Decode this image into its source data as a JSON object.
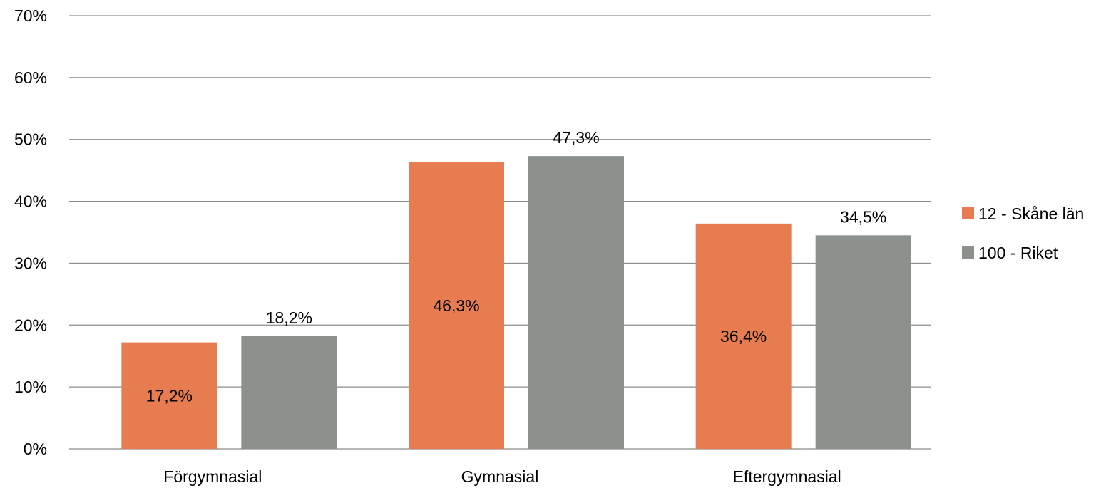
{
  "chart_data": {
    "type": "bar",
    "title": "",
    "xlabel": "",
    "ylabel": "",
    "categories": [
      "Förgymnasial",
      "Gymnasial",
      "Eftergymnasial"
    ],
    "series": [
      {
        "name": "12 - Skåne län",
        "color": "#E67C50",
        "values": [
          17.2,
          46.3,
          36.4
        ],
        "labels": [
          "17,2%",
          "46,3%",
          "36,4%"
        ],
        "label_position": "inside"
      },
      {
        "name": "100 - Riket",
        "color": "#8C918E",
        "values": [
          18.2,
          47.3,
          34.5
        ],
        "labels": [
          "18,2%",
          "47,3%",
          "34,5%"
        ],
        "label_position": "outside-end"
      }
    ],
    "ylim": [
      0,
      70
    ],
    "yticks": [
      0,
      10,
      20,
      30,
      40,
      50,
      60,
      70
    ],
    "ytick_labels": [
      "0%",
      "10%",
      "20%",
      "30%",
      "40%",
      "50%",
      "60%",
      "70%"
    ],
    "grid": true,
    "grid_color": "#8c8c8c",
    "legend_position": "right"
  }
}
